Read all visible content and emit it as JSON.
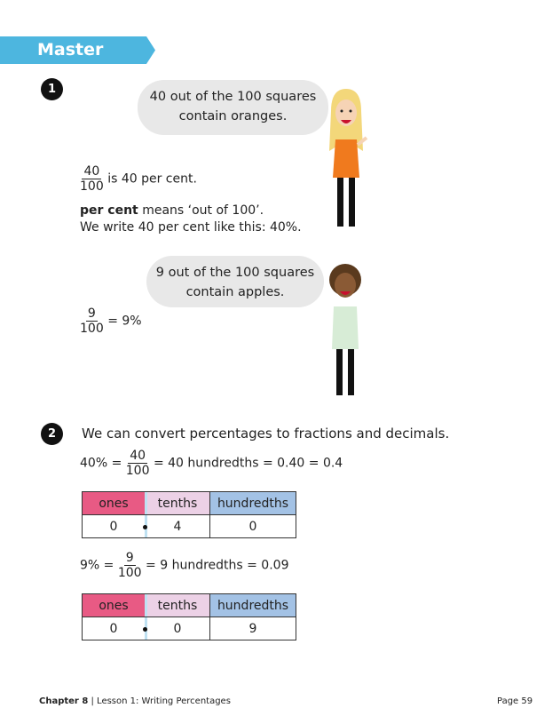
{
  "header": {
    "title": "Master"
  },
  "q1": {
    "number": "1",
    "bubble1": "40 out of the 100 squares contain oranges.",
    "bubble1_line1": "40 out of the 100 squares",
    "bubble1_line2": "contain oranges.",
    "frac1_num": "40",
    "frac1_den": "100",
    "frac1_text": "is 40 per cent.",
    "def_bold": "per cent",
    "def_rest": " means ‘out of 100’.",
    "write_line": "We write 40 per cent like this: 40%.",
    "bubble2_line1": "9 out of the 100 squares",
    "bubble2_line2": "contain apples.",
    "frac2_num": "9",
    "frac2_den": "100",
    "frac2_text": "= 9%"
  },
  "q2": {
    "number": "2",
    "intro": "We can convert percentages to fractions and decimals.",
    "eq1_left": "40% =",
    "eq1_num": "40",
    "eq1_den": "100",
    "eq1_right": "= 40 hundredths = 0.40 = 0.4",
    "eq2_left": "9% =",
    "eq2_num": "9",
    "eq2_den": "100",
    "eq2_right": "= 9 hundredths = 0.09",
    "headers": [
      "ones",
      "tenths",
      "hundredths"
    ],
    "table1": [
      "0",
      "4",
      "0"
    ],
    "table2": [
      "0",
      "0",
      "9"
    ]
  },
  "footer": {
    "chapter": "Chapter 8",
    "lesson": "Lesson 1: Writing Percentages",
    "page": "Page 59"
  },
  "colors": {
    "banner": "#4db6df",
    "ones": "#e85a84",
    "tenths": "#ecd1e6",
    "hundredths": "#a3c2e5"
  }
}
